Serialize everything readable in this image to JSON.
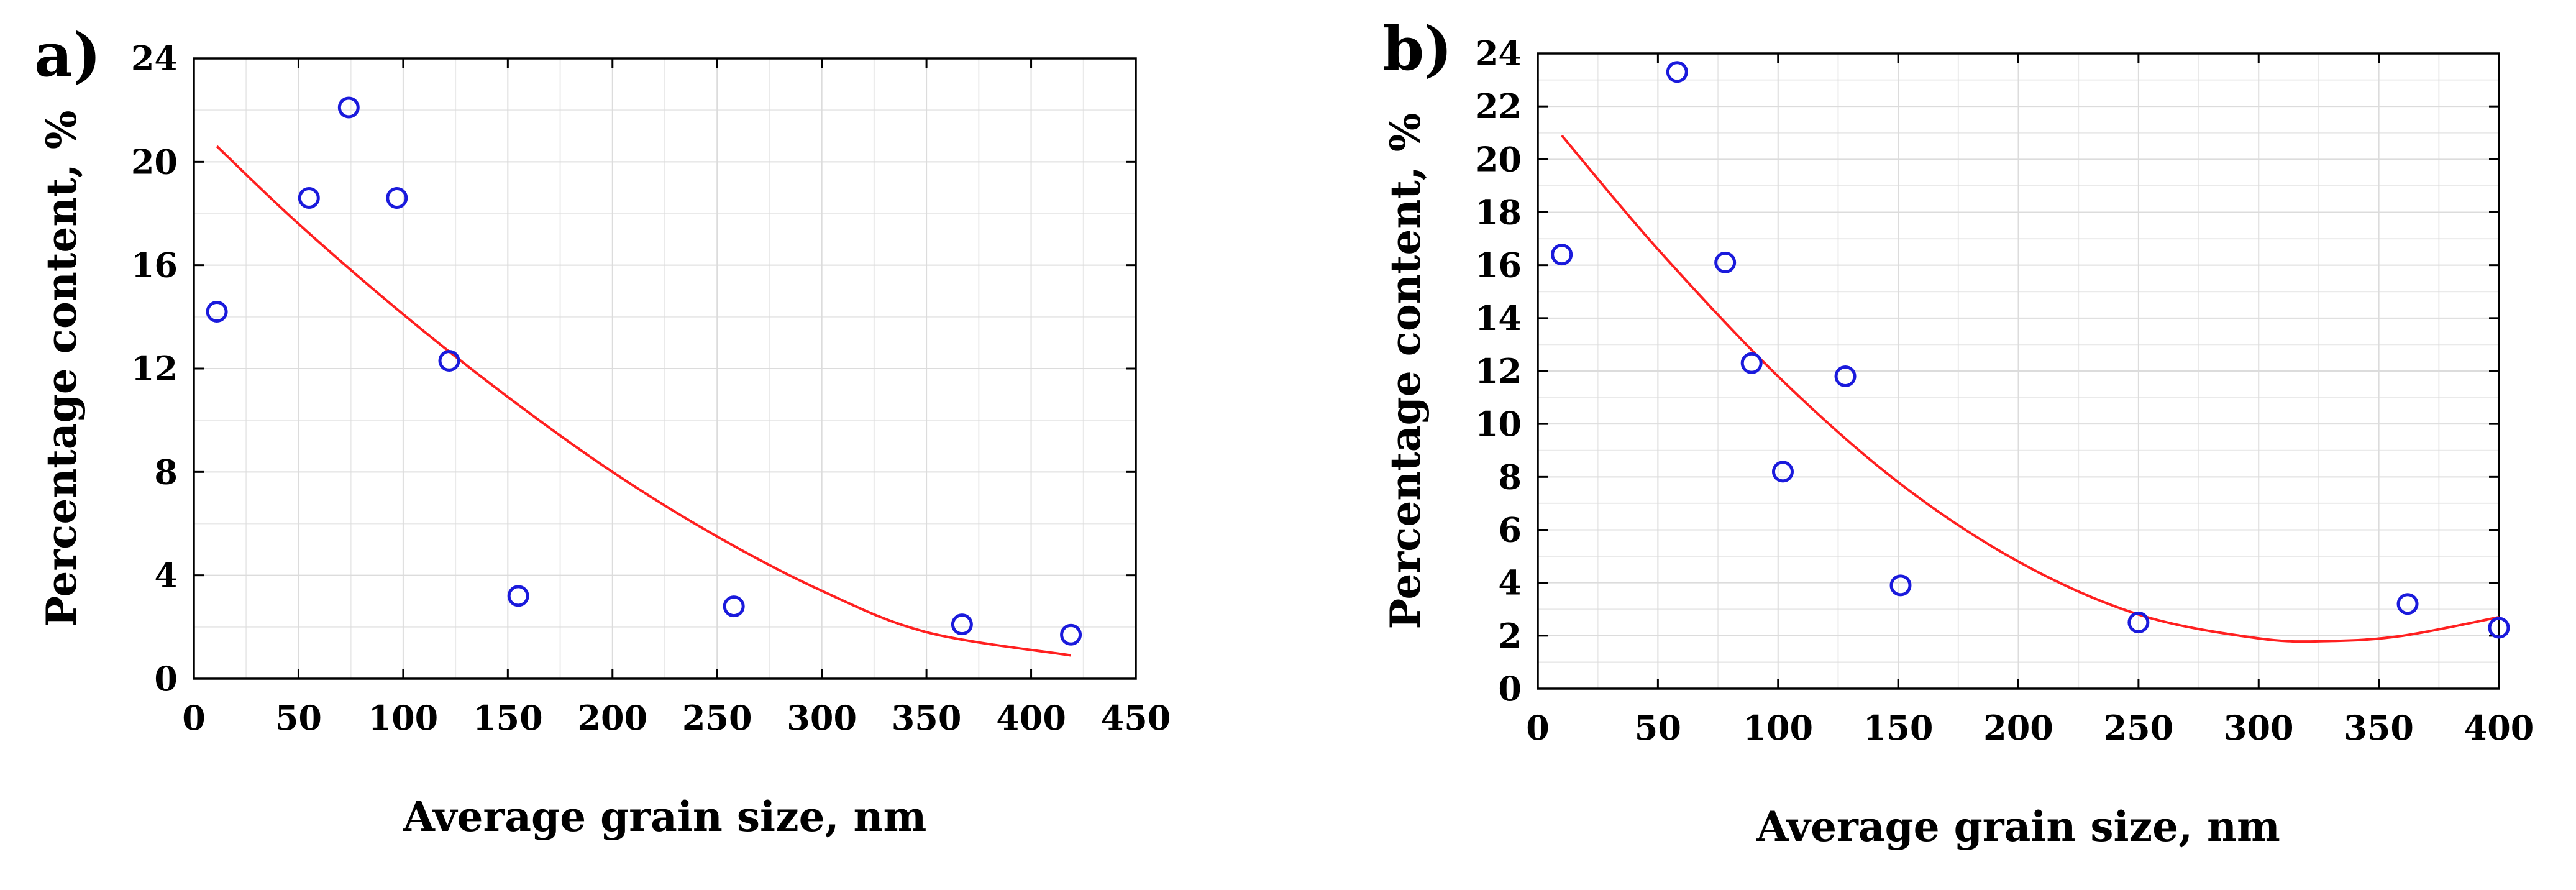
{
  "chart_data": [
    {
      "panel": "a)",
      "type": "scatter",
      "xlabel": "Average grain size, nm",
      "ylabel": "Percentage content, %",
      "xlim": [
        0,
        450
      ],
      "ylim": [
        0,
        24
      ],
      "x_ticks": [
        0,
        50,
        100,
        150,
        200,
        250,
        300,
        350,
        400,
        450
      ],
      "y_ticks": [
        0,
        4,
        8,
        12,
        16,
        20,
        24
      ],
      "grid": true,
      "series": [
        {
          "type": "scatter",
          "color": "#1a1adc",
          "marker": "open-circle",
          "points": [
            {
              "x": 11,
              "y": 14.2
            },
            {
              "x": 55,
              "y": 18.6
            },
            {
              "x": 74,
              "y": 22.1
            },
            {
              "x": 97,
              "y": 18.6
            },
            {
              "x": 122,
              "y": 12.3
            },
            {
              "x": 155,
              "y": 3.2
            },
            {
              "x": 258,
              "y": 2.8
            },
            {
              "x": 367,
              "y": 2.1
            },
            {
              "x": 419,
              "y": 1.7
            }
          ]
        },
        {
          "type": "line",
          "color": "#ff2020",
          "curve": "quadratic fit",
          "points": [
            {
              "x": 11,
              "y": 20.6
            },
            {
              "x": 50,
              "y": 17.6
            },
            {
              "x": 100,
              "y": 14.1
            },
            {
              "x": 150,
              "y": 10.9
            },
            {
              "x": 200,
              "y": 8.0
            },
            {
              "x": 250,
              "y": 5.5
            },
            {
              "x": 300,
              "y": 3.4
            },
            {
              "x": 350,
              "y": 1.8
            },
            {
              "x": 419,
              "y": 0.9
            }
          ]
        }
      ]
    },
    {
      "panel": "b)",
      "type": "scatter",
      "xlabel": "Average grain size, nm",
      "ylabel": "Percentage content, %",
      "xlim": [
        0,
        400
      ],
      "ylim": [
        0,
        24
      ],
      "x_ticks": [
        0,
        50,
        100,
        150,
        200,
        250,
        300,
        350,
        400
      ],
      "y_ticks": [
        0,
        2,
        4,
        6,
        8,
        10,
        12,
        14,
        16,
        18,
        20,
        22,
        24
      ],
      "grid": true,
      "series": [
        {
          "type": "scatter",
          "color": "#1a1adc",
          "marker": "open-circle",
          "points": [
            {
              "x": 10,
              "y": 16.4
            },
            {
              "x": 58,
              "y": 23.3
            },
            {
              "x": 78,
              "y": 16.1
            },
            {
              "x": 89,
              "y": 12.3
            },
            {
              "x": 102,
              "y": 8.2
            },
            {
              "x": 128,
              "y": 11.8
            },
            {
              "x": 151,
              "y": 3.9
            },
            {
              "x": 250,
              "y": 2.5
            },
            {
              "x": 362,
              "y": 3.2
            },
            {
              "x": 400,
              "y": 2.3
            }
          ]
        },
        {
          "type": "line",
          "color": "#ff2020",
          "curve": "quadratic fit",
          "points": [
            {
              "x": 10,
              "y": 20.9
            },
            {
              "x": 50,
              "y": 16.6
            },
            {
              "x": 100,
              "y": 11.8
            },
            {
              "x": 150,
              "y": 7.8
            },
            {
              "x": 200,
              "y": 4.8
            },
            {
              "x": 250,
              "y": 2.8
            },
            {
              "x": 300,
              "y": 1.9
            },
            {
              "x": 330,
              "y": 1.8
            },
            {
              "x": 360,
              "y": 2.0
            },
            {
              "x": 400,
              "y": 2.7
            }
          ]
        }
      ]
    }
  ]
}
